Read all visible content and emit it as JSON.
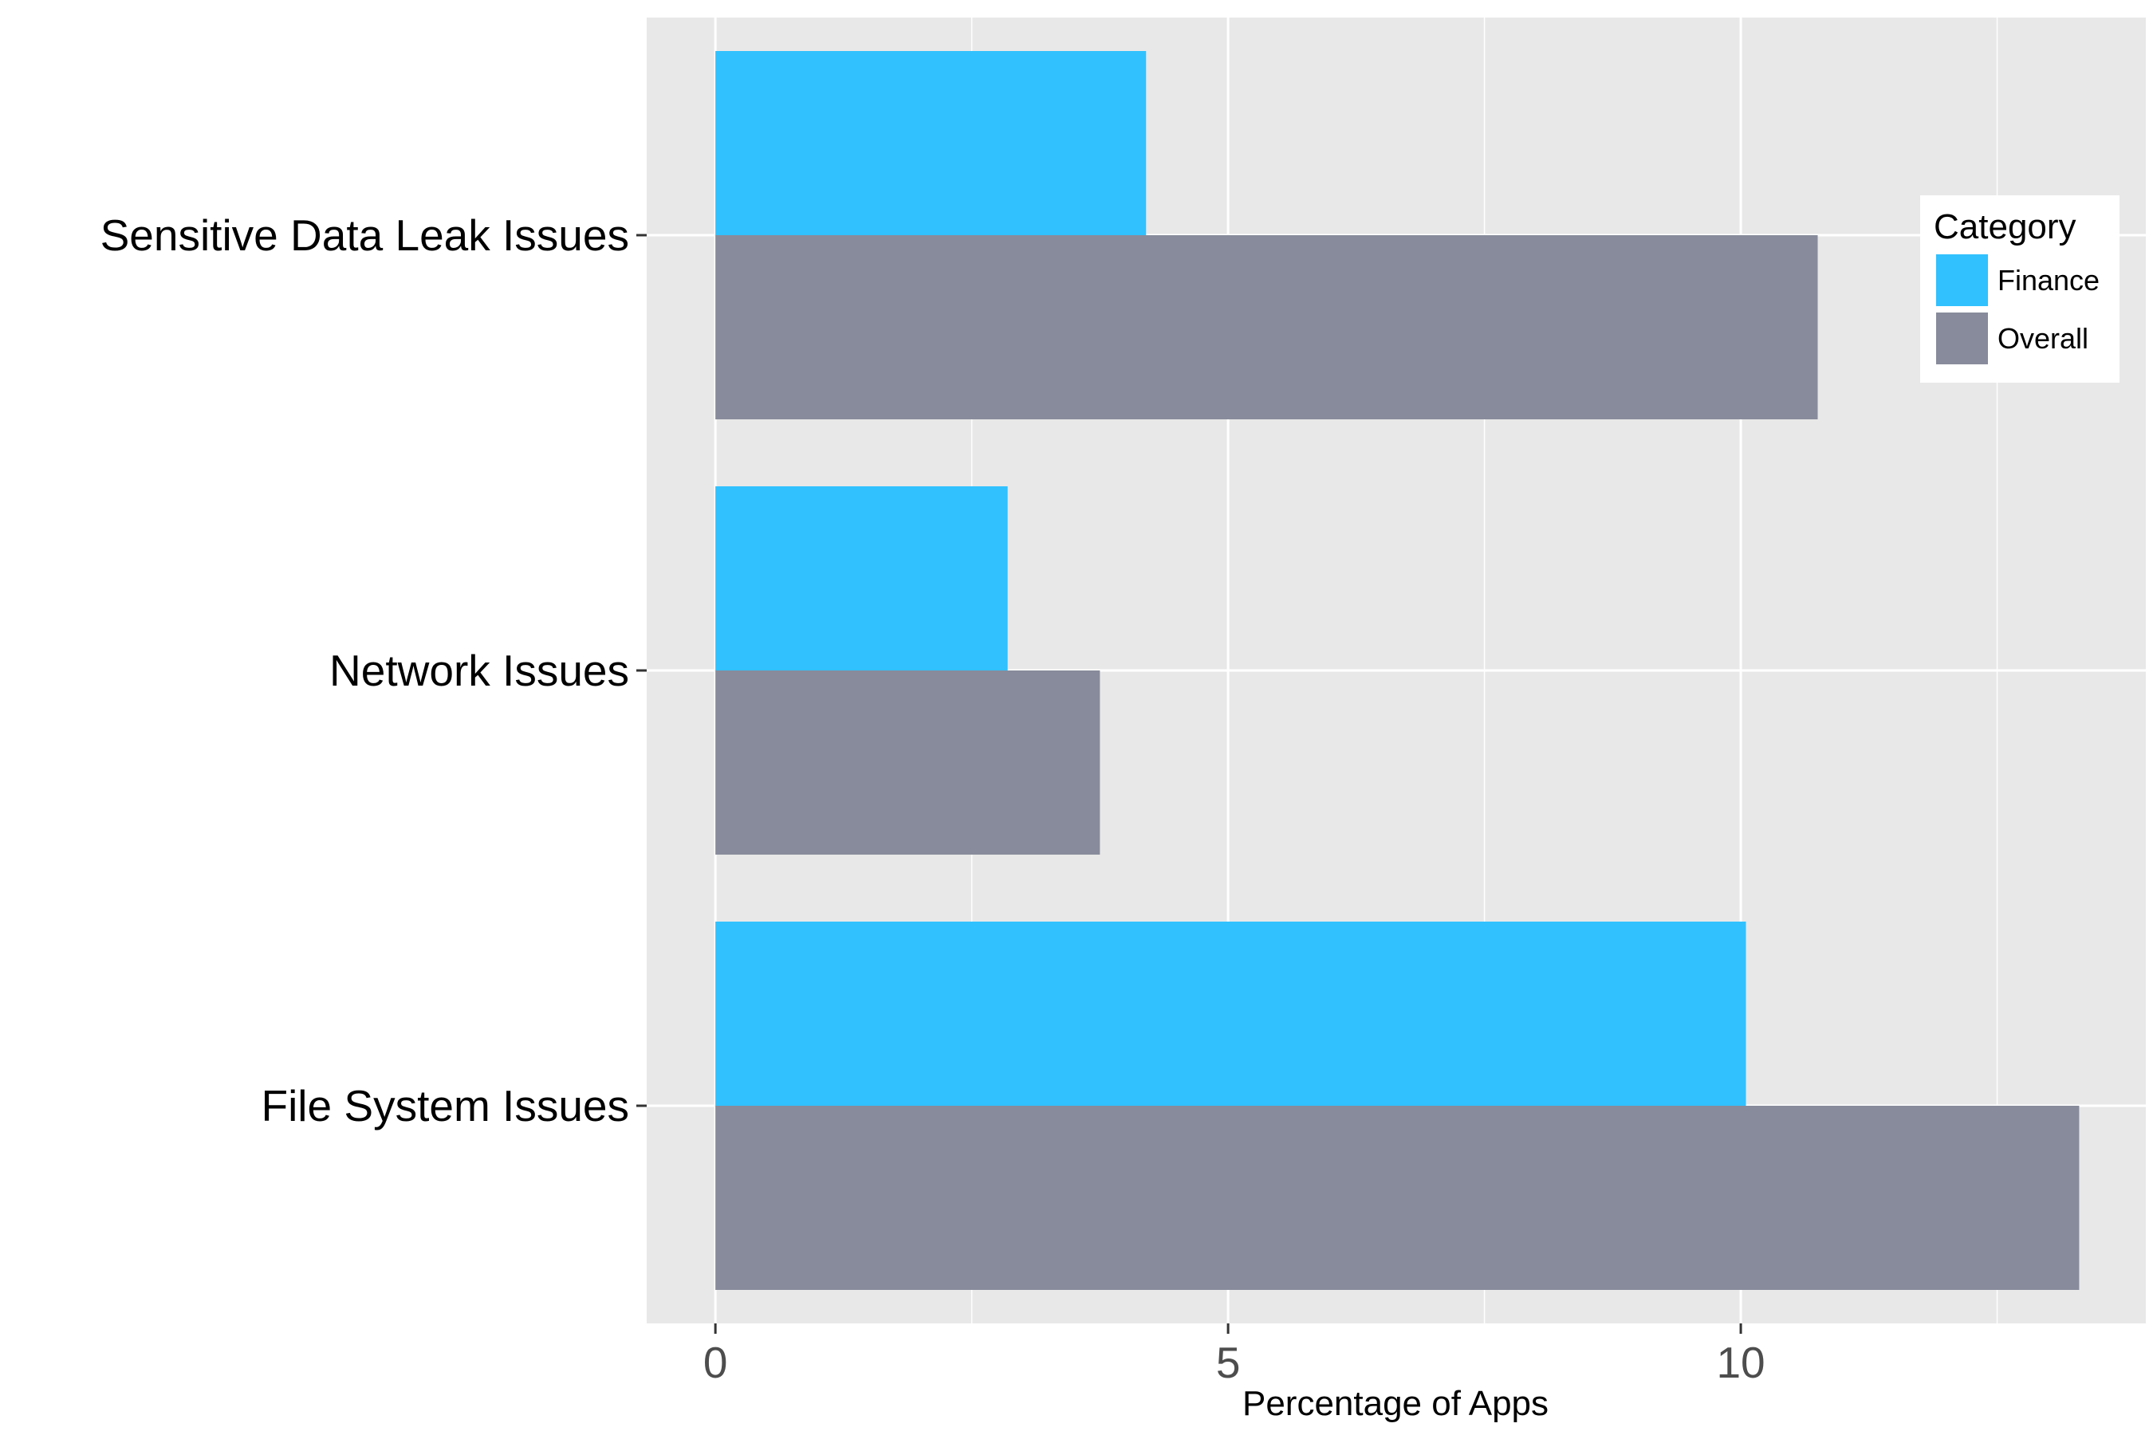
{
  "chart_data": {
    "type": "bar",
    "orientation": "horizontal",
    "title": "",
    "xlabel": "Percentage of Apps",
    "ylabel": "",
    "categories": [
      "Sensitive Data Leak Issues",
      "Network Issues",
      "File System Issues"
    ],
    "series": [
      {
        "name": "Finance",
        "color": "#31C1FE",
        "values": [
          4.2,
          2.85,
          10.05
        ]
      },
      {
        "name": "Overall",
        "color": "#888B9B",
        "values": [
          10.75,
          3.75,
          13.3
        ]
      }
    ],
    "xlim": [
      -0.67,
      13.95
    ],
    "x_ticks": [
      0,
      5,
      10
    ],
    "x_tick_labels": [
      "0",
      "5",
      "10"
    ],
    "grid": true,
    "legend": {
      "title": "Category",
      "placement": "right"
    },
    "colors": {
      "panel_background": "#E8E8E8",
      "grid_line": "#FFFFFF"
    }
  }
}
